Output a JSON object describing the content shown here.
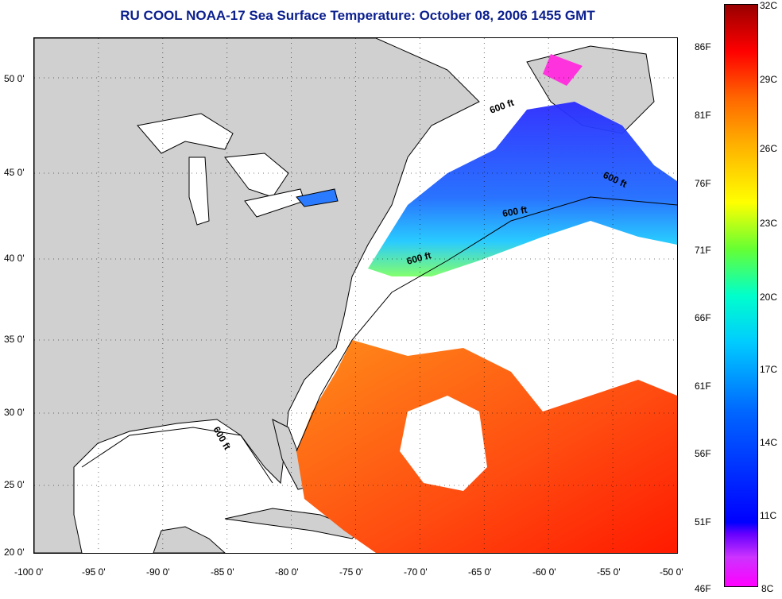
{
  "title": "RU COOL  NOAA-17  Sea Surface Temperature:  October 08, 2006 1455 GMT",
  "map": {
    "lon_ticks": [
      "-100 0'",
      "-95 0'",
      "-90 0'",
      "-85 0'",
      "-80 0'",
      "-75 0'",
      "-70 0'",
      "-65 0'",
      "-60 0'",
      "-55 0'",
      "-50 0'"
    ],
    "lat_ticks": [
      "50 0'",
      "45 0'",
      "40 0'",
      "35 0'",
      "30 0'",
      "25 0'",
      "20 0'"
    ],
    "isobath_label": "600 ft",
    "colors": {
      "land": "#d0d0d0",
      "ocean_cloud": "#ffffff"
    }
  },
  "colorbar": {
    "celsius": [
      "32C",
      "29C",
      "26C",
      "23C",
      "20C",
      "17C",
      "14C",
      "11C",
      "8C"
    ],
    "fahrenheit": [
      "86F",
      "81F",
      "76F",
      "71F",
      "66F",
      "61F",
      "56F",
      "51F",
      "46F"
    ]
  }
}
